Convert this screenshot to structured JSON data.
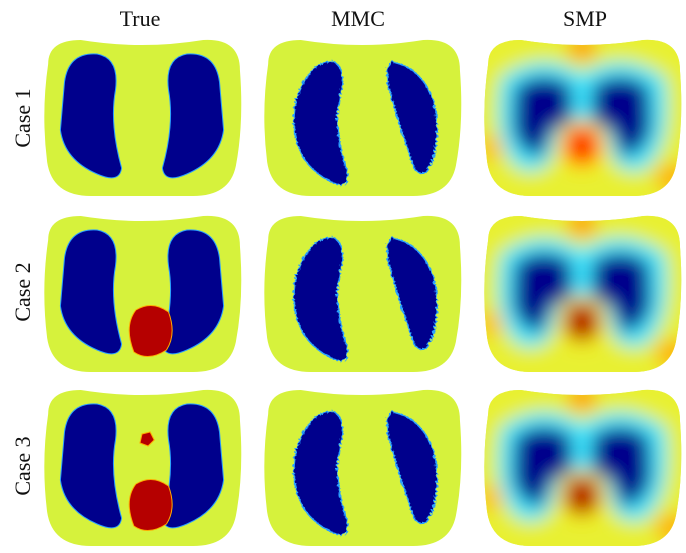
{
  "headers": [
    "True",
    "MMC",
    "SMP"
  ],
  "rows": [
    "Case 1",
    "Case 2",
    "Case 3"
  ]
}
